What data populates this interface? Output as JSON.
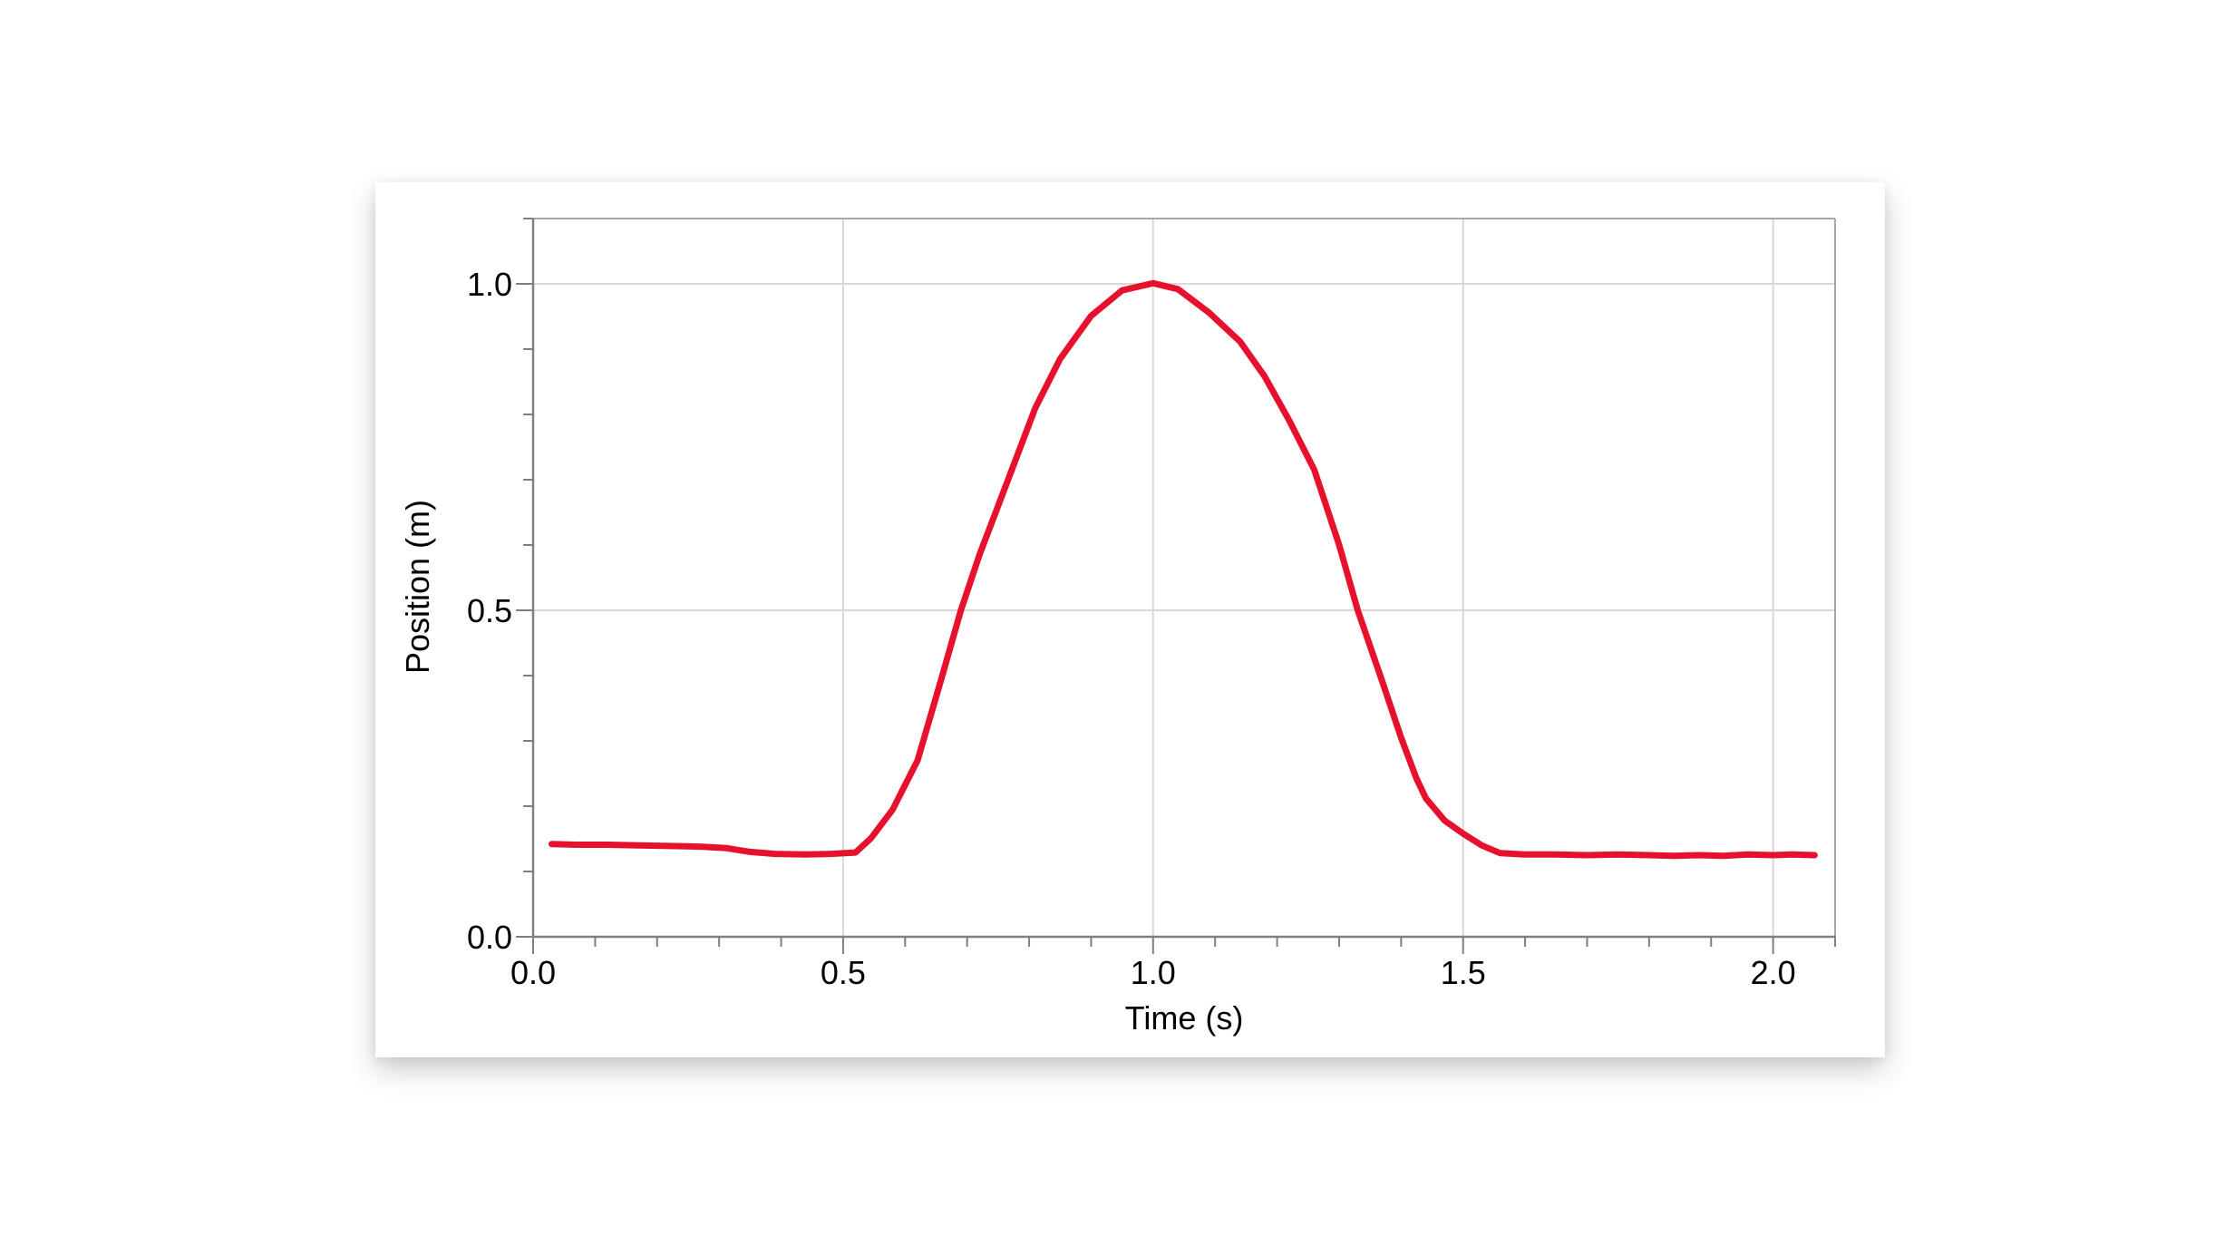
{
  "page": {
    "background_color": "#ffffff"
  },
  "chart_data": {
    "type": "line",
    "title": "",
    "xlabel": "Time (s)",
    "ylabel": "Position (m)",
    "xlim": [
      0.0,
      2.1
    ],
    "ylim": [
      0.0,
      1.1
    ],
    "x_major_ticks": [
      0.0,
      0.5,
      1.0,
      1.5,
      2.0
    ],
    "x_tick_labels": [
      "0.0",
      "0.5",
      "1.0",
      "1.5",
      "2.0"
    ],
    "y_major_ticks": [
      0.0,
      0.5,
      1.0
    ],
    "y_tick_labels": [
      "0.0",
      "0.5",
      "1.0"
    ],
    "minor_tick_step": 0.1,
    "grid": true,
    "legend": "none",
    "line_color": "#e8112d",
    "axis_color": "#808080",
    "frame_color": "#a6a6a6",
    "grid_color": "#d8d8d8",
    "text_color": "#000000",
    "series": [
      {
        "name": "Position",
        "units": "m",
        "points": [
          [
            0.03,
            0.142
          ],
          [
            0.07,
            0.141
          ],
          [
            0.12,
            0.141
          ],
          [
            0.17,
            0.14
          ],
          [
            0.22,
            0.139
          ],
          [
            0.27,
            0.138
          ],
          [
            0.31,
            0.136
          ],
          [
            0.35,
            0.13
          ],
          [
            0.39,
            0.127
          ],
          [
            0.44,
            0.126
          ],
          [
            0.48,
            0.127
          ],
          [
            0.52,
            0.129
          ],
          [
            0.545,
            0.151
          ],
          [
            0.58,
            0.195
          ],
          [
            0.62,
            0.27
          ],
          [
            0.66,
            0.4
          ],
          [
            0.69,
            0.5
          ],
          [
            0.72,
            0.585
          ],
          [
            0.75,
            0.66
          ],
          [
            0.78,
            0.735
          ],
          [
            0.81,
            0.81
          ],
          [
            0.85,
            0.885
          ],
          [
            0.9,
            0.951
          ],
          [
            0.95,
            0.99
          ],
          [
            1.0,
            1.001
          ],
          [
            1.04,
            0.992
          ],
          [
            1.09,
            0.956
          ],
          [
            1.14,
            0.912
          ],
          [
            1.18,
            0.858
          ],
          [
            1.22,
            0.79
          ],
          [
            1.26,
            0.715
          ],
          [
            1.3,
            0.6
          ],
          [
            1.33,
            0.5
          ],
          [
            1.37,
            0.39
          ],
          [
            1.4,
            0.305
          ],
          [
            1.425,
            0.242
          ],
          [
            1.44,
            0.212
          ],
          [
            1.47,
            0.178
          ],
          [
            1.5,
            0.158
          ],
          [
            1.53,
            0.14
          ],
          [
            1.56,
            0.128
          ],
          [
            1.6,
            0.126
          ],
          [
            1.65,
            0.126
          ],
          [
            1.7,
            0.125
          ],
          [
            1.75,
            0.126
          ],
          [
            1.8,
            0.125
          ],
          [
            1.84,
            0.124
          ],
          [
            1.88,
            0.125
          ],
          [
            1.92,
            0.124
          ],
          [
            1.96,
            0.126
          ],
          [
            2.0,
            0.125
          ],
          [
            2.03,
            0.126
          ],
          [
            2.067,
            0.125
          ]
        ]
      }
    ]
  }
}
